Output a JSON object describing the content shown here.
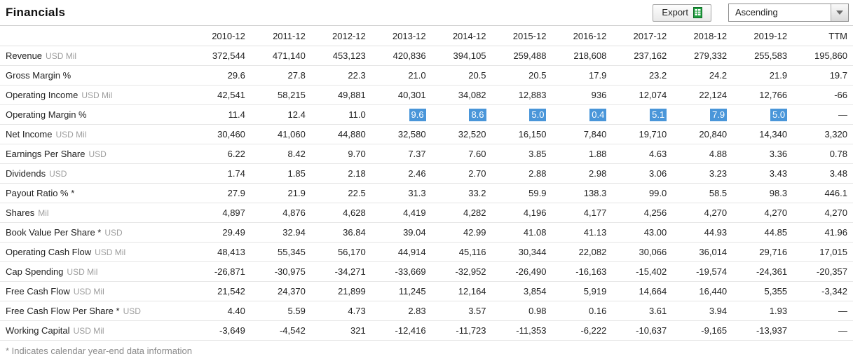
{
  "page": {
    "title": "Financials"
  },
  "toolbar": {
    "export_label": "Export",
    "sort_value": "Ascending"
  },
  "colors": {
    "highlight_blue": "#4a96d9",
    "export_icon_green": "#1f9e3e"
  },
  "table": {
    "columns": [
      "2010-12",
      "2011-12",
      "2012-12",
      "2013-12",
      "2014-12",
      "2015-12",
      "2016-12",
      "2017-12",
      "2018-12",
      "2019-12",
      "TTM"
    ],
    "rows": [
      {
        "label": "Revenue",
        "unit": "USD Mil",
        "highlights": [],
        "values": [
          "372,544",
          "471,140",
          "453,123",
          "420,836",
          "394,105",
          "259,488",
          "218,608",
          "237,162",
          "279,332",
          "255,583",
          "195,860"
        ]
      },
      {
        "label": "Gross Margin %",
        "unit": "",
        "highlights": [],
        "values": [
          "29.6",
          "27.8",
          "22.3",
          "21.0",
          "20.5",
          "20.5",
          "17.9",
          "23.2",
          "24.2",
          "21.9",
          "19.7"
        ]
      },
      {
        "label": "Operating Income",
        "unit": "USD Mil",
        "highlights": [],
        "values": [
          "42,541",
          "58,215",
          "49,881",
          "40,301",
          "34,082",
          "12,883",
          "936",
          "12,074",
          "22,124",
          "12,766",
          "-66"
        ]
      },
      {
        "label": "Operating Margin %",
        "unit": "",
        "highlights": [
          3,
          4,
          5,
          6,
          7,
          8,
          9
        ],
        "values": [
          "11.4",
          "12.4",
          "11.0",
          "9.6",
          "8.6",
          "5.0",
          "0.4",
          "5.1",
          "7.9",
          "5.0",
          "—"
        ]
      },
      {
        "label": "Net Income",
        "unit": "USD Mil",
        "highlights": [],
        "values": [
          "30,460",
          "41,060",
          "44,880",
          "32,580",
          "32,520",
          "16,150",
          "7,840",
          "19,710",
          "20,840",
          "14,340",
          "3,320"
        ]
      },
      {
        "label": "Earnings Per Share",
        "unit": "USD",
        "highlights": [],
        "values": [
          "6.22",
          "8.42",
          "9.70",
          "7.37",
          "7.60",
          "3.85",
          "1.88",
          "4.63",
          "4.88",
          "3.36",
          "0.78"
        ]
      },
      {
        "label": "Dividends",
        "unit": "USD",
        "highlights": [],
        "values": [
          "1.74",
          "1.85",
          "2.18",
          "2.46",
          "2.70",
          "2.88",
          "2.98",
          "3.06",
          "3.23",
          "3.43",
          "3.48"
        ]
      },
      {
        "label": "Payout Ratio % *",
        "unit": "",
        "highlights": [],
        "values": [
          "27.9",
          "21.9",
          "22.5",
          "31.3",
          "33.2",
          "59.9",
          "138.3",
          "99.0",
          "58.5",
          "98.3",
          "446.1"
        ]
      },
      {
        "label": "Shares",
        "unit": "Mil",
        "highlights": [],
        "values": [
          "4,897",
          "4,876",
          "4,628",
          "4,419",
          "4,282",
          "4,196",
          "4,177",
          "4,256",
          "4,270",
          "4,270",
          "4,270"
        ]
      },
      {
        "label": "Book Value Per Share *",
        "unit": "USD",
        "highlights": [],
        "values": [
          "29.49",
          "32.94",
          "36.84",
          "39.04",
          "42.99",
          "41.08",
          "41.13",
          "43.00",
          "44.93",
          "44.85",
          "41.96"
        ]
      },
      {
        "label": "Operating Cash Flow",
        "unit": "USD Mil",
        "highlights": [],
        "values": [
          "48,413",
          "55,345",
          "56,170",
          "44,914",
          "45,116",
          "30,344",
          "22,082",
          "30,066",
          "36,014",
          "29,716",
          "17,015"
        ]
      },
      {
        "label": "Cap Spending",
        "unit": "USD Mil",
        "highlights": [],
        "values": [
          "-26,871",
          "-30,975",
          "-34,271",
          "-33,669",
          "-32,952",
          "-26,490",
          "-16,163",
          "-15,402",
          "-19,574",
          "-24,361",
          "-20,357"
        ]
      },
      {
        "label": "Free Cash Flow",
        "unit": "USD Mil",
        "highlights": [],
        "values": [
          "21,542",
          "24,370",
          "21,899",
          "11,245",
          "12,164",
          "3,854",
          "5,919",
          "14,664",
          "16,440",
          "5,355",
          "-3,342"
        ]
      },
      {
        "label": "Free Cash Flow Per Share *",
        "unit": "USD",
        "highlights": [],
        "values": [
          "4.40",
          "5.59",
          "4.73",
          "2.83",
          "3.57",
          "0.98",
          "0.16",
          "3.61",
          "3.94",
          "1.93",
          "—"
        ]
      },
      {
        "label": "Working Capital",
        "unit": "USD Mil",
        "highlights": [],
        "values": [
          "-3,649",
          "-4,542",
          "321",
          "-12,416",
          "-11,723",
          "-11,353",
          "-6,222",
          "-10,637",
          "-9,165",
          "-13,937",
          "—"
        ]
      }
    ]
  },
  "footer": {
    "note": "* Indicates calendar year-end data information"
  }
}
